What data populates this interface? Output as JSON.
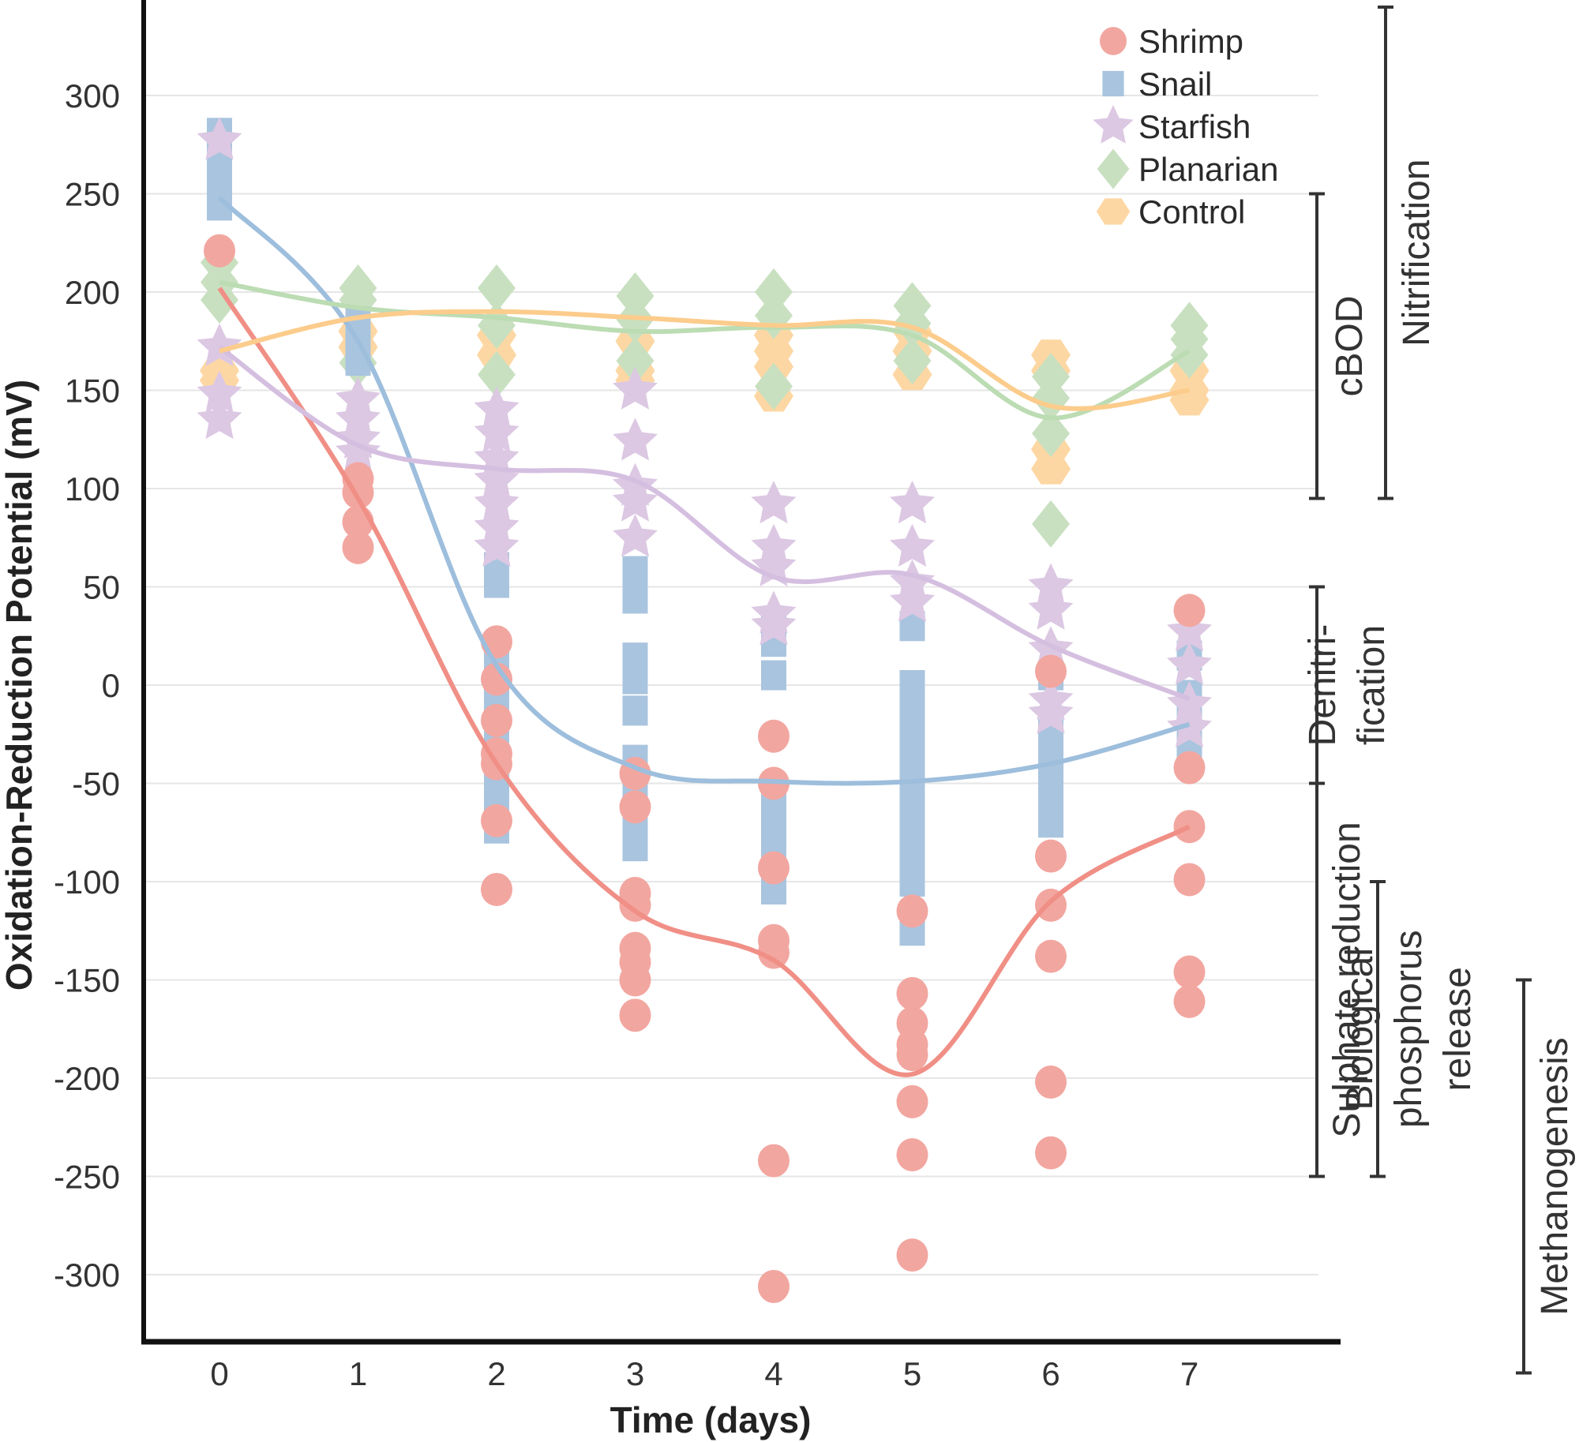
{
  "chart_data": {
    "type": "scatter",
    "title": "",
    "xlabel": "Time (days)",
    "ylabel": "Oxidation-Reduction Potential (mV)",
    "x_ticks": [
      "0",
      "1",
      "2",
      "3",
      "4",
      "5",
      "6",
      "7"
    ],
    "y_ticks": [
      "300",
      "250",
      "200",
      "150",
      "100",
      "50",
      "0",
      "-50",
      "-100",
      "-150",
      "-200",
      "-250",
      "-300"
    ],
    "xlim": [
      -0.45,
      7.9
    ],
    "ylim": [
      -335,
      355
    ],
    "grid": true,
    "legend_position": "top-right",
    "series": [
      {
        "name": "Shrimp",
        "marker": "circle",
        "color": "#f2a6a0",
        "points": [
          [
            0,
            221
          ],
          [
            1,
            105
          ],
          [
            1,
            98
          ],
          [
            1,
            83
          ],
          [
            1,
            70
          ],
          [
            2,
            22
          ],
          [
            2,
            3
          ],
          [
            2,
            -18
          ],
          [
            2,
            -35
          ],
          [
            2,
            -40
          ],
          [
            2,
            -69
          ],
          [
            2,
            -104
          ],
          [
            3,
            -45
          ],
          [
            3,
            -62
          ],
          [
            3,
            -106
          ],
          [
            3,
            -112
          ],
          [
            3,
            -134
          ],
          [
            3,
            -141
          ],
          [
            3,
            -150
          ],
          [
            3,
            -168
          ],
          [
            4,
            -26
          ],
          [
            4,
            -50
          ],
          [
            4,
            -93
          ],
          [
            4,
            -130
          ],
          [
            4,
            -136
          ],
          [
            4,
            -242
          ],
          [
            4,
            -306
          ],
          [
            5,
            -115
          ],
          [
            5,
            -157
          ],
          [
            5,
            -172
          ],
          [
            5,
            -183
          ],
          [
            5,
            -188
          ],
          [
            5,
            -212
          ],
          [
            5,
            -239
          ],
          [
            5,
            -290
          ],
          [
            6,
            7
          ],
          [
            6,
            -87
          ],
          [
            6,
            -112
          ],
          [
            6,
            -138
          ],
          [
            6,
            -202
          ],
          [
            6,
            -238
          ],
          [
            7,
            38
          ],
          [
            7,
            -42
          ],
          [
            7,
            -72
          ],
          [
            7,
            -99
          ],
          [
            7,
            -146
          ],
          [
            7,
            -161
          ]
        ],
        "trend": [
          [
            0,
            202
          ],
          [
            1,
            95
          ],
          [
            2,
            -40
          ],
          [
            3,
            -115
          ],
          [
            4,
            -140
          ],
          [
            5,
            -198
          ],
          [
            6,
            -110
          ],
          [
            7,
            -72
          ]
        ]
      },
      {
        "name": "Snail",
        "marker": "square",
        "color": "#a9c4de",
        "points": [
          [
            0,
            281
          ],
          [
            0,
            270
          ],
          [
            0,
            260
          ],
          [
            0,
            250
          ],
          [
            0,
            244
          ],
          [
            1,
            185
          ],
          [
            1,
            175
          ],
          [
            1,
            165
          ],
          [
            2,
            60
          ],
          [
            2,
            52
          ],
          [
            2,
            10
          ],
          [
            2,
            -5
          ],
          [
            2,
            -20
          ],
          [
            2,
            -32
          ],
          [
            2,
            -45
          ],
          [
            2,
            -60
          ],
          [
            2,
            -73
          ],
          [
            3,
            58
          ],
          [
            3,
            50
          ],
          [
            3,
            44
          ],
          [
            3,
            14
          ],
          [
            3,
            3
          ],
          [
            3,
            -13
          ],
          [
            3,
            -38
          ],
          [
            3,
            -50
          ],
          [
            3,
            -64
          ],
          [
            3,
            -74
          ],
          [
            3,
            -82
          ],
          [
            4,
            30
          ],
          [
            4,
            22
          ],
          [
            4,
            5
          ],
          [
            4,
            -57
          ],
          [
            4,
            -66
          ],
          [
            4,
            -80
          ],
          [
            4,
            -92
          ],
          [
            4,
            -104
          ],
          [
            5,
            30
          ],
          [
            5,
            0
          ],
          [
            5,
            -10
          ],
          [
            5,
            -25
          ],
          [
            5,
            -40
          ],
          [
            5,
            -55
          ],
          [
            5,
            -70
          ],
          [
            5,
            -85
          ],
          [
            5,
            -100
          ],
          [
            5,
            -125
          ],
          [
            6,
            5
          ],
          [
            6,
            -25
          ],
          [
            6,
            -38
          ],
          [
            6,
            -50
          ],
          [
            6,
            -60
          ],
          [
            6,
            -70
          ],
          [
            7,
            15
          ],
          [
            7,
            -5
          ],
          [
            7,
            -20
          ],
          [
            7,
            -30
          ]
        ],
        "trend": [
          [
            0,
            248
          ],
          [
            1,
            175
          ],
          [
            2,
            10
          ],
          [
            3,
            -42
          ],
          [
            4,
            -49
          ],
          [
            5,
            -49
          ],
          [
            6,
            -40
          ],
          [
            7,
            -20
          ]
        ]
      },
      {
        "name": "Starfish",
        "marker": "star",
        "color": "#dcc8e3",
        "points": [
          [
            0,
            277
          ],
          [
            0,
            172
          ],
          [
            0,
            148
          ],
          [
            0,
            135
          ],
          [
            1,
            145
          ],
          [
            1,
            135
          ],
          [
            1,
            125
          ],
          [
            1,
            118
          ],
          [
            2,
            140
          ],
          [
            2,
            128
          ],
          [
            2,
            115
          ],
          [
            2,
            104
          ],
          [
            2,
            92
          ],
          [
            2,
            80
          ],
          [
            2,
            70
          ],
          [
            3,
            150
          ],
          [
            3,
            124
          ],
          [
            3,
            101
          ],
          [
            3,
            93
          ],
          [
            3,
            75
          ],
          [
            4,
            92
          ],
          [
            4,
            70
          ],
          [
            4,
            60
          ],
          [
            4,
            36
          ],
          [
            4,
            30
          ],
          [
            5,
            92
          ],
          [
            5,
            70
          ],
          [
            5,
            52
          ],
          [
            5,
            42
          ],
          [
            6,
            50
          ],
          [
            6,
            38
          ],
          [
            6,
            18
          ],
          [
            6,
            -8
          ],
          [
            6,
            -15
          ],
          [
            7,
            27
          ],
          [
            7,
            10
          ],
          [
            7,
            -10
          ],
          [
            7,
            -22
          ]
        ],
        "trend": [
          [
            0,
            172
          ],
          [
            1,
            122
          ],
          [
            2,
            110
          ],
          [
            3,
            104
          ],
          [
            4,
            55
          ],
          [
            5,
            56
          ],
          [
            6,
            20
          ],
          [
            7,
            -7
          ]
        ]
      },
      {
        "name": "Planarian",
        "marker": "diamond",
        "color": "#c8e0c0",
        "points": [
          [
            0,
            215
          ],
          [
            0,
            205
          ],
          [
            0,
            196
          ],
          [
            1,
            202
          ],
          [
            1,
            196
          ],
          [
            1,
            164
          ],
          [
            2,
            202
          ],
          [
            2,
            183
          ],
          [
            2,
            158
          ],
          [
            3,
            198
          ],
          [
            3,
            186
          ],
          [
            3,
            165
          ],
          [
            4,
            200
          ],
          [
            4,
            188
          ],
          [
            4,
            152
          ],
          [
            5,
            193
          ],
          [
            5,
            184
          ],
          [
            5,
            165
          ],
          [
            6,
            157
          ],
          [
            6,
            146
          ],
          [
            6,
            128
          ],
          [
            6,
            82
          ],
          [
            7,
            183
          ],
          [
            7,
            176
          ],
          [
            7,
            168
          ]
        ],
        "trend": [
          [
            0,
            205
          ],
          [
            1,
            192
          ],
          [
            2,
            187
          ],
          [
            3,
            180
          ],
          [
            4,
            182
          ],
          [
            5,
            178
          ],
          [
            6,
            136
          ],
          [
            7,
            170
          ]
        ]
      },
      {
        "name": "Control",
        "marker": "hexagon",
        "color": "#fdd7a3",
        "points": [
          [
            0,
            160
          ],
          [
            0,
            155
          ],
          [
            1,
            180
          ],
          [
            1,
            172
          ],
          [
            2,
            178
          ],
          [
            2,
            168
          ],
          [
            3,
            175
          ],
          [
            3,
            160
          ],
          [
            3,
            155
          ],
          [
            4,
            178
          ],
          [
            4,
            170
          ],
          [
            4,
            162
          ],
          [
            4,
            147
          ],
          [
            5,
            180
          ],
          [
            5,
            170
          ],
          [
            5,
            158
          ],
          [
            6,
            168
          ],
          [
            6,
            160
          ],
          [
            6,
            120
          ],
          [
            6,
            110
          ],
          [
            7,
            160
          ],
          [
            7,
            150
          ],
          [
            7,
            145
          ]
        ],
        "trend": [
          [
            0,
            170
          ],
          [
            1,
            187
          ],
          [
            2,
            190
          ],
          [
            3,
            187
          ],
          [
            4,
            183
          ],
          [
            5,
            182
          ],
          [
            6,
            142
          ],
          [
            7,
            150
          ]
        ]
      }
    ],
    "annotations": [
      {
        "label": "cBOD",
        "from": 250,
        "to": 95
      },
      {
        "label": "Nitrification",
        "from": 345,
        "to": 95
      },
      {
        "label": "Denitri-",
        "label2": "fication",
        "from": 50,
        "to": -50
      },
      {
        "label": "Sulphate reduction",
        "from": -50,
        "to": -250
      },
      {
        "label": "Biological",
        "label2": "phosphorus",
        "label3": "release",
        "from": -100,
        "to": -250
      },
      {
        "label": "Methanogenesis",
        "from": -150,
        "to": -350
      }
    ]
  }
}
